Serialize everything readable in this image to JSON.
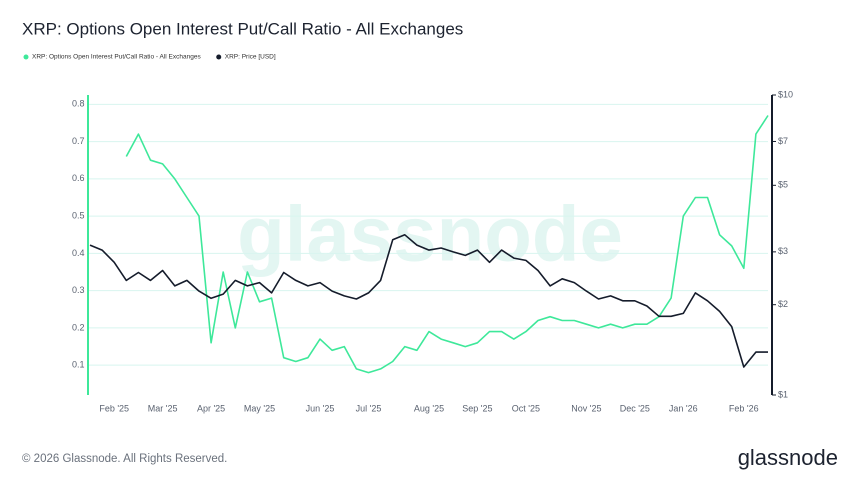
{
  "chart_data": {
    "type": "line",
    "title": "XRP: Options Open Interest Put/Call Ratio - All Exchanges",
    "watermark": "glassnode",
    "footer": "© 2026 Glassnode. All Rights Reserved.",
    "logo": "glassnode",
    "categories": [
      null,
      null,
      "Feb '25",
      null,
      null,
      null,
      "Mar '25",
      null,
      null,
      null,
      "Apr '25",
      null,
      null,
      null,
      "May '25",
      null,
      null,
      null,
      null,
      "Jun '25",
      null,
      null,
      null,
      "Jul '25",
      null,
      null,
      null,
      null,
      "Aug '25",
      null,
      null,
      null,
      "Sep '25",
      null,
      null,
      null,
      "Oct '25",
      null,
      null,
      null,
      null,
      "Nov '25",
      null,
      null,
      null,
      "Dec '25",
      null,
      null,
      null,
      "Jan '26",
      null,
      null,
      null,
      null,
      "Feb '26",
      null,
      null
    ],
    "series": [
      {
        "name": "XRP: Options Open Interest Put/Call Ratio - All Exchanges",
        "color": "#3ee89a",
        "values": [
          null,
          null,
          null,
          0.66,
          0.72,
          0.65,
          0.64,
          0.6,
          0.55,
          0.5,
          0.16,
          0.35,
          0.2,
          0.35,
          0.27,
          0.28,
          0.12,
          0.11,
          0.12,
          0.17,
          0.14,
          0.15,
          0.09,
          0.08,
          0.09,
          0.11,
          0.15,
          0.14,
          0.19,
          0.17,
          0.16,
          0.15,
          0.16,
          0.19,
          0.19,
          0.17,
          0.19,
          0.22,
          0.23,
          0.22,
          0.22,
          0.21,
          0.2,
          0.21,
          0.2,
          0.21,
          0.21,
          0.23,
          0.28,
          0.5,
          0.55,
          0.55,
          0.45,
          0.42,
          0.36,
          0.72,
          0.77
        ]
      },
      {
        "name": "XRP: Price [USD]",
        "color": "#151c2b",
        "axis": "y2",
        "values": [
          3.16,
          3.04,
          2.77,
          2.41,
          2.56,
          2.41,
          2.6,
          2.31,
          2.41,
          2.22,
          2.1,
          2.17,
          2.41,
          2.31,
          2.37,
          2.19,
          2.56,
          2.41,
          2.31,
          2.37,
          2.22,
          2.14,
          2.09,
          2.19,
          2.41,
          3.29,
          3.42,
          3.16,
          3.04,
          3.09,
          3.0,
          2.92,
          3.04,
          2.77,
          3.04,
          2.86,
          2.81,
          2.6,
          2.31,
          2.44,
          2.37,
          2.22,
          2.09,
          2.14,
          2.06,
          2.06,
          1.98,
          1.83,
          1.83,
          1.87,
          2.19,
          2.06,
          1.9,
          1.69,
          1.24,
          1.39,
          1.39
        ]
      }
    ],
    "ylim": [
      0.02,
      0.825
    ],
    "yticks": [
      0.1,
      0.2,
      0.3,
      0.4,
      0.5,
      0.6,
      0.7,
      0.8
    ],
    "y2lim": [
      1,
      10
    ],
    "y2log": true,
    "y2ticks": [
      {
        "value": 1,
        "label": "$1"
      },
      {
        "value": 2,
        "label": "$2"
      },
      {
        "value": 3,
        "label": "$3"
      },
      {
        "value": 5,
        "label": "$5"
      },
      {
        "value": 7,
        "label": "$7"
      },
      {
        "value": 10,
        "label": "$10"
      }
    ],
    "grid": true
  }
}
